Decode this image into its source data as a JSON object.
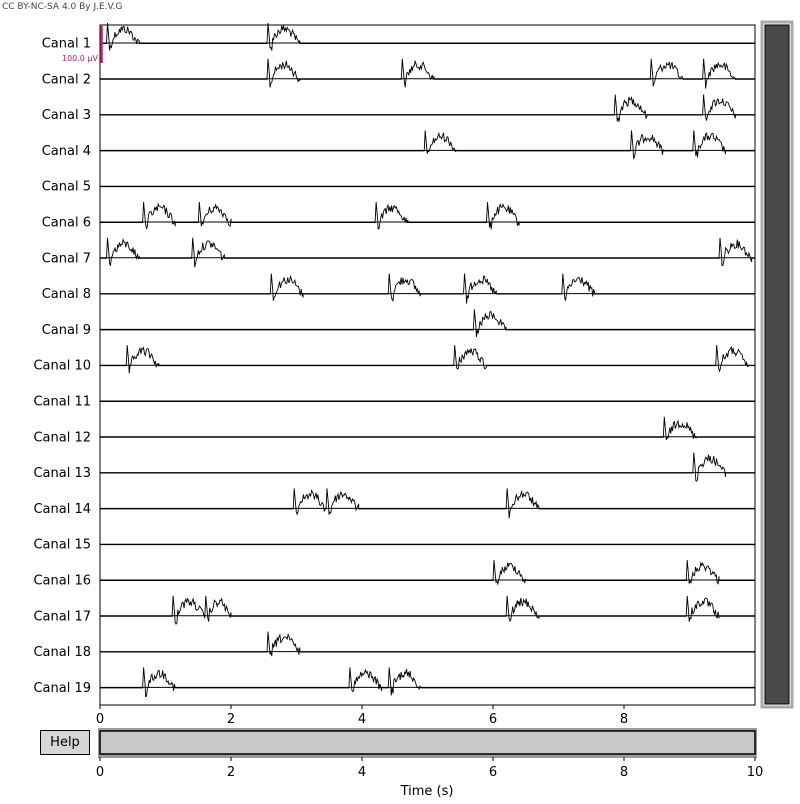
{
  "credit": "CC BY-NC-SA 4.0 By J.E.V.G",
  "help_label": "Help",
  "scale_label": "100.0 µV",
  "colors": {
    "trace": "#000000",
    "scale_bar": "#b5206e",
    "scrollbar_thumb": "#4a4a4a",
    "scrollbar_track": "#c8c8c8",
    "time_slider_fill": "#c8c8c8"
  },
  "chart_data": {
    "type": "line",
    "xlabel": "Time (s)",
    "xlim": [
      0,
      10
    ],
    "xticks": [
      "0",
      "2",
      "4",
      "6",
      "8"
    ],
    "slider_ticks": [
      "0",
      "2",
      "4",
      "6",
      "8",
      "10"
    ],
    "slider_range": [
      0,
      10
    ],
    "channels": [
      {
        "name": "Canal 1",
        "bursts": [
          0.1,
          2.55
        ]
      },
      {
        "name": "Canal 2",
        "bursts": [
          2.55,
          4.6,
          8.4,
          9.2
        ]
      },
      {
        "name": "Canal 3",
        "bursts": [
          7.85,
          9.2
        ]
      },
      {
        "name": "Canal 4",
        "bursts": [
          4.95,
          8.1,
          9.05
        ]
      },
      {
        "name": "Canal 5",
        "bursts": []
      },
      {
        "name": "Canal 6",
        "bursts": [
          0.65,
          1.5,
          4.2,
          5.9
        ]
      },
      {
        "name": "Canal 7",
        "bursts": [
          0.1,
          1.4,
          9.45
        ]
      },
      {
        "name": "Canal 8",
        "bursts": [
          2.6,
          4.4,
          5.55,
          7.05
        ]
      },
      {
        "name": "Canal 9",
        "bursts": [
          5.7
        ]
      },
      {
        "name": "Canal 10",
        "bursts": [
          0.4,
          5.4,
          9.4
        ]
      },
      {
        "name": "Canal 11",
        "bursts": []
      },
      {
        "name": "Canal 12",
        "bursts": [
          8.6
        ]
      },
      {
        "name": "Canal 13",
        "bursts": [
          9.05
        ]
      },
      {
        "name": "Canal 14",
        "bursts": [
          2.95,
          3.45,
          6.2
        ]
      },
      {
        "name": "Canal 15",
        "bursts": []
      },
      {
        "name": "Canal 16",
        "bursts": [
          6.0,
          8.95
        ]
      },
      {
        "name": "Canal 17",
        "bursts": [
          1.1,
          1.5,
          6.2,
          8.95
        ]
      },
      {
        "name": "Canal 18",
        "bursts": [
          2.55
        ]
      },
      {
        "name": "Canal 19",
        "bursts": [
          0.65,
          3.8,
          4.4
        ]
      }
    ]
  }
}
